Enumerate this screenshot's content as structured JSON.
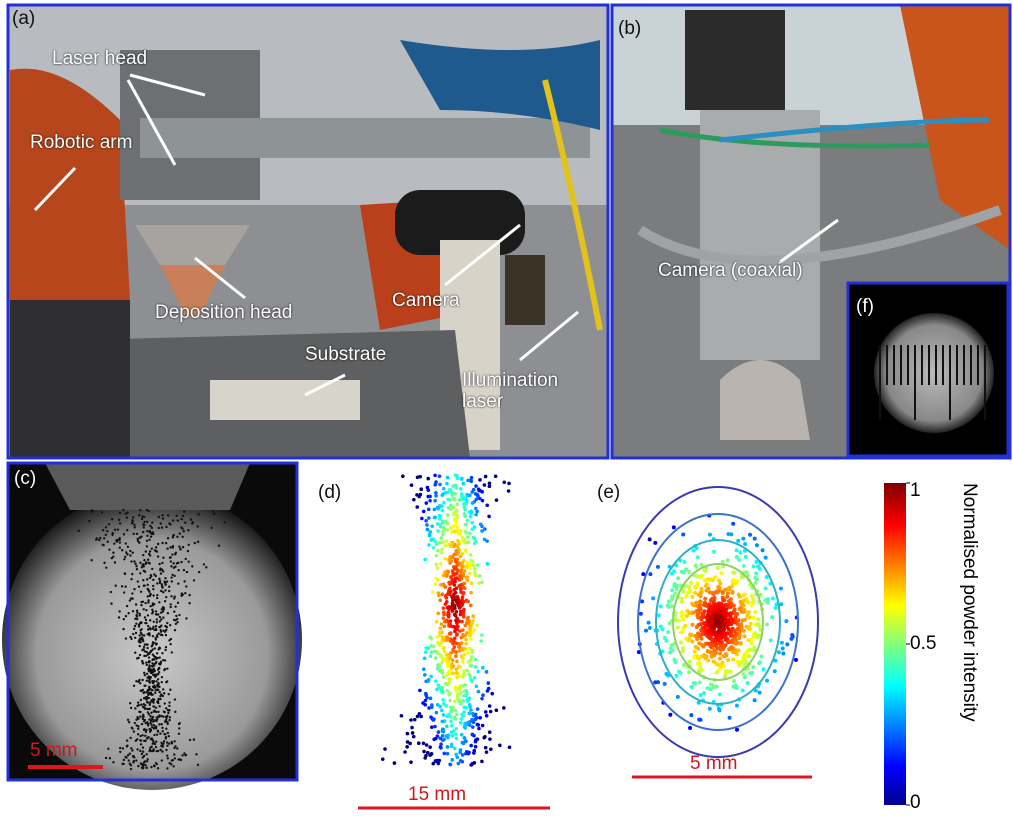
{
  "panels": {
    "a": {
      "label": "(a)",
      "annotations": [
        "Laser head",
        "Robotic arm",
        "Deposition head",
        "Camera",
        "Substrate",
        "Illumination laser"
      ]
    },
    "b": {
      "label": "(b)",
      "annotations": [
        "Camera (coaxial)"
      ]
    },
    "c": {
      "label": "(c)",
      "scale_bar": "5 mm"
    },
    "d": {
      "label": "(d)",
      "scale_bar": "15 mm"
    },
    "e": {
      "label": "(e)",
      "scale_bar": "5 mm"
    },
    "f": {
      "label": "(f)"
    }
  },
  "colorbar": {
    "label": "Normalised powder intensity",
    "ticks": [
      0,
      0.5,
      1
    ]
  }
}
